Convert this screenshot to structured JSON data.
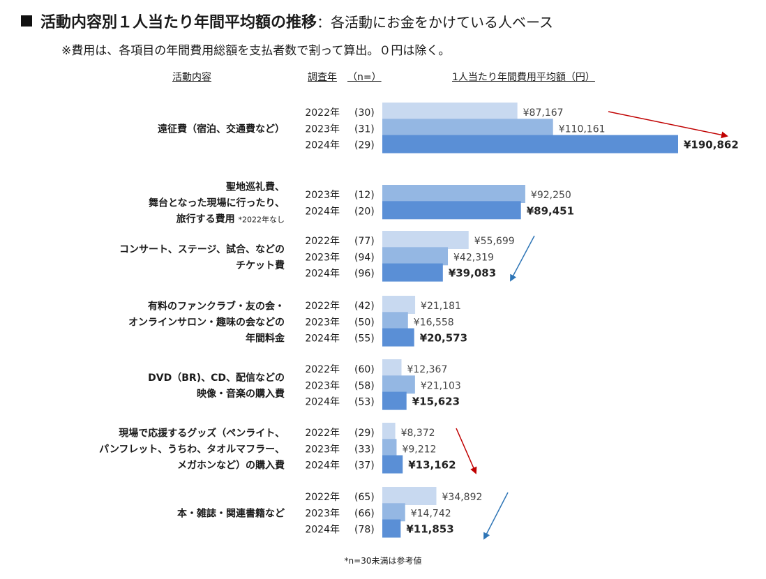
{
  "title": {
    "main": "活動内容別１人当たり年間平均額の推移",
    "sub": "：各活動にお金をかけている人ベース"
  },
  "note": "※費用は、各項目の年間費用総額を支払者数で割って算出。０円は除く。",
  "headers": {
    "activity": "活動内容",
    "year": "調査年",
    "n": "（n=）",
    "amount": "1人当たり年間費用平均額（円）"
  },
  "footnote": "*n=30未満は参考値",
  "colors": {
    "2022": "#c8d9f0",
    "2023": "#94b7e3",
    "2024": "#5a8fd6",
    "arrow_up": "#c00000",
    "arrow_down": "#2e75b6"
  },
  "chart_data": {
    "type": "bar",
    "orientation": "horizontal",
    "series_years": [
      "2022年",
      "2023年",
      "2024年"
    ],
    "groups": [
      {
        "label": [
          "遠征費（宿泊、交通費など）"
        ],
        "note": "",
        "rows": [
          {
            "year": "2022年",
            "n": "(30)",
            "value": 87167,
            "label": "¥87,167"
          },
          {
            "year": "2023年",
            "n": "(31)",
            "value": 110161,
            "label": "¥110,161"
          },
          {
            "year": "2024年",
            "n": "(29)",
            "value": 190862,
            "label": "¥190,862"
          }
        ],
        "trend": "up"
      },
      {
        "label": [
          "聖地巡礼費、",
          "舞台となった現場に行ったり、",
          "旅行する費用"
        ],
        "note": "*2022年なし",
        "rows": [
          {
            "year": "2023年",
            "n": "(12)",
            "value": 92250,
            "label": "¥92,250"
          },
          {
            "year": "2024年",
            "n": "(20)",
            "value": 89451,
            "label": "¥89,451"
          }
        ],
        "trend": ""
      },
      {
        "label": [
          "コンサート、ステージ、試合、などの",
          "チケット費"
        ],
        "note": "",
        "rows": [
          {
            "year": "2022年",
            "n": "(77)",
            "value": 55699,
            "label": "¥55,699"
          },
          {
            "year": "2023年",
            "n": "(94)",
            "value": 42319,
            "label": "¥42,319"
          },
          {
            "year": "2024年",
            "n": "(96)",
            "value": 39083,
            "label": "¥39,083"
          }
        ],
        "trend": "down"
      },
      {
        "label": [
          "有料のファンクラブ・友の会・",
          "オンラインサロン・趣味の会などの",
          "年間料金"
        ],
        "note": "",
        "rows": [
          {
            "year": "2022年",
            "n": "(42)",
            "value": 21181,
            "label": "¥21,181"
          },
          {
            "year": "2023年",
            "n": "(50)",
            "value": 16558,
            "label": "¥16,558"
          },
          {
            "year": "2024年",
            "n": "(55)",
            "value": 20573,
            "label": "¥20,573"
          }
        ],
        "trend": ""
      },
      {
        "label": [
          "DVD（BR)、CD、配信などの",
          "映像・音楽の購入費"
        ],
        "note": "",
        "rows": [
          {
            "year": "2022年",
            "n": "(60)",
            "value": 12367,
            "label": "¥12,367"
          },
          {
            "year": "2023年",
            "n": "(58)",
            "value": 21103,
            "label": "¥21,103"
          },
          {
            "year": "2024年",
            "n": "(53)",
            "value": 15623,
            "label": "¥15,623"
          }
        ],
        "trend": ""
      },
      {
        "label": [
          "現場で応援するグッズ（ペンライト、",
          "パンフレット、うちわ、タオルマフラー、",
          "メガホンなど）の購入費"
        ],
        "note": "",
        "rows": [
          {
            "year": "2022年",
            "n": "(29)",
            "value": 8372,
            "label": "¥8,372"
          },
          {
            "year": "2023年",
            "n": "(33)",
            "value": 9212,
            "label": "¥9,212"
          },
          {
            "year": "2024年",
            "n": "(37)",
            "value": 13162,
            "label": "¥13,162"
          }
        ],
        "trend": "up"
      },
      {
        "label": [
          "本・雑誌・関連書籍など"
        ],
        "note": "",
        "rows": [
          {
            "year": "2022年",
            "n": "(65)",
            "value": 34892,
            "label": "¥34,892"
          },
          {
            "year": "2023年",
            "n": "(66)",
            "value": 14742,
            "label": "¥14,742"
          },
          {
            "year": "2024年",
            "n": "(78)",
            "value": 11853,
            "label": "¥11,853"
          }
        ],
        "trend": "down"
      }
    ]
  }
}
